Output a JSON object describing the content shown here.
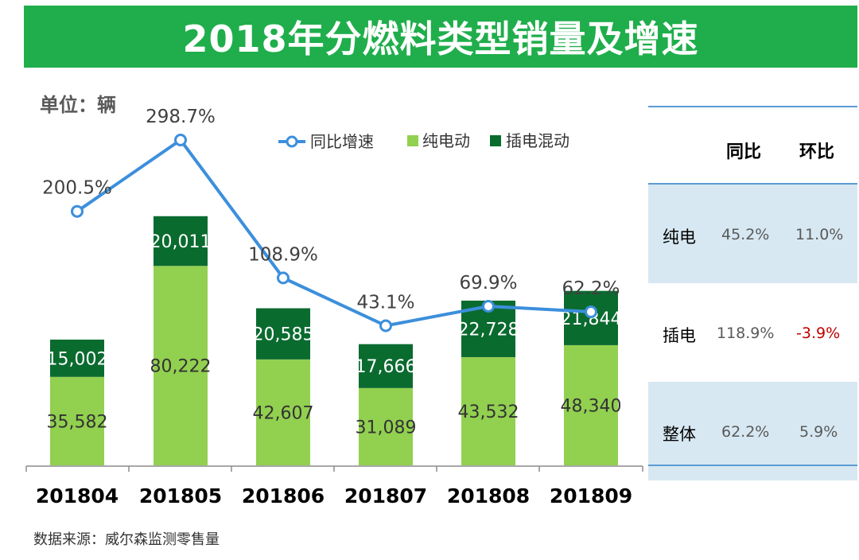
{
  "title": "2018年分燃料类型销量及增速",
  "unit_label": "单位：辆",
  "source_note": "数据来源：威尔森监测零售量",
  "colors": {
    "title_bg": "#1fae4b",
    "bev": "#92d050",
    "phev": "#0a6b2f",
    "line": "#3c8fdc"
  },
  "chart_data": {
    "type": "bar",
    "stacked": true,
    "categories": [
      "201804",
      "201805",
      "201806",
      "201807",
      "201808",
      "201809"
    ],
    "series": [
      {
        "name": "纯电动",
        "values": [
          35582,
          80222,
          42607,
          31089,
          43532,
          48340
        ]
      },
      {
        "name": "插电混动",
        "values": [
          15002,
          20011,
          20585,
          17666,
          22728,
          21844
        ]
      }
    ],
    "line_series": {
      "name": "同比增速",
      "values": [
        200.5,
        298.7,
        108.9,
        43.1,
        69.9,
        62.2
      ],
      "labels": [
        "200.5%",
        "298.7%",
        "108.9%",
        "43.1%",
        "69.9%",
        "62.2%"
      ]
    },
    "bar_labels": {
      "bev": [
        "35,582",
        "80,222",
        "42,607",
        "31,089",
        "43,532",
        "48,340"
      ],
      "phev": [
        "15,002",
        "20,011",
        "20,585",
        "17,666",
        "22,728",
        "21,844"
      ]
    },
    "legend": [
      "同比增速",
      "纯电动",
      "插电混动"
    ],
    "ylim": [
      0,
      120000
    ],
    "line_ylim": [
      -160,
      360
    ]
  },
  "side_table": {
    "headers": [
      "同比",
      "环比"
    ],
    "rows": [
      {
        "label": "纯电",
        "yoy": "45.2%",
        "mom": "11.0%",
        "mom_negative": false
      },
      {
        "label": "插电",
        "yoy": "118.9%",
        "mom": "-3.9%",
        "mom_negative": true
      },
      {
        "label": "整体",
        "yoy": "62.2%",
        "mom": "5.9%",
        "mom_negative": false
      }
    ]
  }
}
